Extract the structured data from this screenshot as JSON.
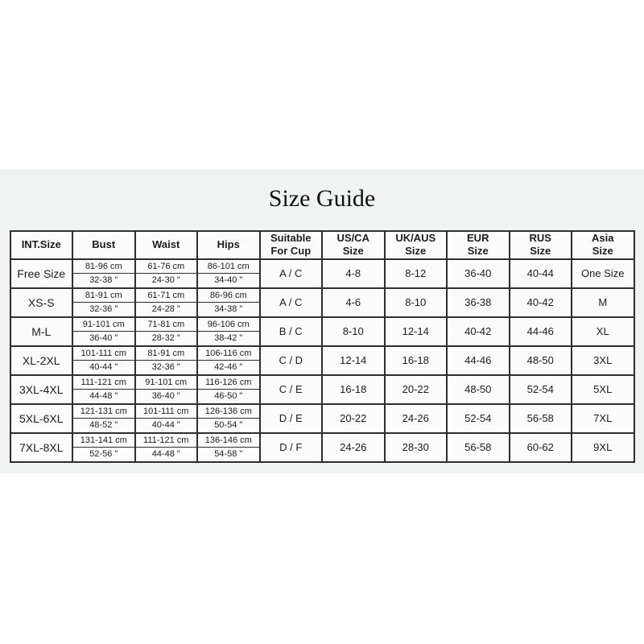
{
  "title": "Size Guide",
  "colors": {
    "panel_background": "#f1f2f2",
    "cell_background": "#fbfbfb",
    "border": "#2e2e2e",
    "text": "#1c1c1c"
  },
  "table": {
    "headers": [
      "INT.Size",
      "Bust",
      "Waist",
      "Hips",
      "Suitable\nFor Cup",
      "US/CA\nSize",
      "UK/AUS\nSize",
      "EUR\nSize",
      "RUS\nSize",
      "Asia\nSize"
    ],
    "rows": [
      {
        "int_size": "Free Size",
        "bust_cm": "81-96 cm",
        "bust_in": "32-38 \"",
        "waist_cm": "61-76 cm",
        "waist_in": "24-30 \"",
        "hips_cm": "86-101 cm",
        "hips_in": "34-40 \"",
        "cup": "A / C",
        "us_ca": "4-8",
        "uk_aus": "8-12",
        "eur": "36-40",
        "rus": "40-44",
        "asia": "One Size"
      },
      {
        "int_size": "XS-S",
        "bust_cm": "81-91 cm",
        "bust_in": "32-36 \"",
        "waist_cm": "61-71 cm",
        "waist_in": "24-28 \"",
        "hips_cm": "86-96 cm",
        "hips_in": "34-38 \"",
        "cup": "A / C",
        "us_ca": "4-6",
        "uk_aus": "8-10",
        "eur": "36-38",
        "rus": "40-42",
        "asia": "M"
      },
      {
        "int_size": "M-L",
        "bust_cm": "91-101 cm",
        "bust_in": "36-40 \"",
        "waist_cm": "71-81 cm",
        "waist_in": "28-32 \"",
        "hips_cm": "96-106 cm",
        "hips_in": "38-42 \"",
        "cup": "B / C",
        "us_ca": "8-10",
        "uk_aus": "12-14",
        "eur": "40-42",
        "rus": "44-46",
        "asia": "XL"
      },
      {
        "int_size": "XL-2XL",
        "bust_cm": "101-111 cm",
        "bust_in": "40-44 \"",
        "waist_cm": "81-91 cm",
        "waist_in": "32-36 \"",
        "hips_cm": "106-116 cm",
        "hips_in": "42-46 \"",
        "cup": "C / D",
        "us_ca": "12-14",
        "uk_aus": "16-18",
        "eur": "44-46",
        "rus": "48-50",
        "asia": "3XL"
      },
      {
        "int_size": "3XL-4XL",
        "bust_cm": "111-121 cm",
        "bust_in": "44-48 \"",
        "waist_cm": "91-101 cm",
        "waist_in": "36-40 \"",
        "hips_cm": "116-126 cm",
        "hips_in": "46-50 \"",
        "cup": "C / E",
        "us_ca": "16-18",
        "uk_aus": "20-22",
        "eur": "48-50",
        "rus": "52-54",
        "asia": "5XL"
      },
      {
        "int_size": "5XL-6XL",
        "bust_cm": "121-131 cm",
        "bust_in": "48-52 \"",
        "waist_cm": "101-111 cm",
        "waist_in": "40-44 \"",
        "hips_cm": "126-136 cm",
        "hips_in": "50-54 \"",
        "cup": "D / E",
        "us_ca": "20-22",
        "uk_aus": "24-26",
        "eur": "52-54",
        "rus": "56-58",
        "asia": "7XL"
      },
      {
        "int_size": "7XL-8XL",
        "bust_cm": "131-141 cm",
        "bust_in": "52-56 \"",
        "waist_cm": "111-121 cm",
        "waist_in": "44-48 \"",
        "hips_cm": "136-146 cm",
        "hips_in": "54-58 \"",
        "cup": "D / F",
        "us_ca": "24-26",
        "uk_aus": "28-30",
        "eur": "56-58",
        "rus": "60-62",
        "asia": "9XL"
      }
    ]
  }
}
